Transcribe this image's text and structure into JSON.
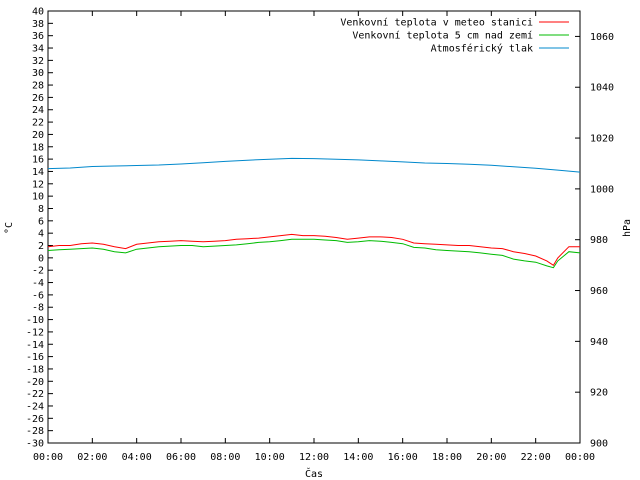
{
  "chart_data": {
    "type": "line",
    "title": "",
    "xlabel": "Čas",
    "ylabel_left": "°C",
    "ylabel_right": "hPa",
    "x_ticks": [
      "00:00",
      "02:00",
      "04:00",
      "06:00",
      "08:00",
      "10:00",
      "12:00",
      "14:00",
      "16:00",
      "18:00",
      "20:00",
      "22:00",
      "00:00"
    ],
    "x_range_hours": [
      0,
      24
    ],
    "y_left_range": [
      -30,
      40
    ],
    "y_left_step": 2,
    "y_right_range": [
      900,
      1070
    ],
    "y_right_ticks": [
      900,
      920,
      940,
      960,
      980,
      1000,
      1020,
      1040,
      1060
    ],
    "grid": false,
    "legend_position": "top-right",
    "series": [
      {
        "name": "Venkovní teplota v meteo stanici",
        "color": "#ff0000",
        "axis": "left",
        "x": [
          0,
          0.5,
          1,
          1.5,
          2,
          2.5,
          3,
          3.5,
          4,
          4.5,
          5,
          5.5,
          6,
          6.5,
          7,
          7.5,
          8,
          8.5,
          9,
          9.5,
          10,
          10.5,
          11,
          11.5,
          12,
          12.5,
          13,
          13.5,
          14,
          14.5,
          15,
          15.5,
          16,
          16.5,
          17,
          17.5,
          18,
          18.5,
          19,
          19.5,
          20,
          20.5,
          21,
          21.5,
          22,
          22.5,
          22.8,
          23,
          23.5,
          24
        ],
        "y": [
          1.8,
          2.0,
          2.0,
          2.3,
          2.4,
          2.2,
          1.8,
          1.5,
          2.2,
          2.4,
          2.6,
          2.7,
          2.8,
          2.7,
          2.6,
          2.7,
          2.8,
          3.0,
          3.1,
          3.2,
          3.4,
          3.6,
          3.8,
          3.6,
          3.6,
          3.5,
          3.3,
          3.0,
          3.2,
          3.4,
          3.4,
          3.3,
          3.0,
          2.4,
          2.3,
          2.2,
          2.1,
          2.0,
          2.0,
          1.8,
          1.6,
          1.5,
          1.0,
          0.7,
          0.3,
          -0.5,
          -1.2,
          0.0,
          1.8,
          1.8
        ]
      },
      {
        "name": "Venkovní teplota 5 cm nad zemí",
        "color": "#00bb00",
        "axis": "left",
        "x": [
          0,
          0.5,
          1,
          1.5,
          2,
          2.5,
          3,
          3.5,
          4,
          4.5,
          5,
          5.5,
          6,
          6.5,
          7,
          7.5,
          8,
          8.5,
          9,
          9.5,
          10,
          10.5,
          11,
          11.5,
          12,
          12.5,
          13,
          13.5,
          14,
          14.5,
          15,
          15.5,
          16,
          16.5,
          17,
          17.5,
          18,
          18.5,
          19,
          19.5,
          20,
          20.5,
          21,
          21.5,
          22,
          22.5,
          22.8,
          23,
          23.5,
          24
        ],
        "y": [
          1.2,
          1.3,
          1.4,
          1.5,
          1.6,
          1.4,
          1.0,
          0.8,
          1.4,
          1.6,
          1.8,
          1.9,
          2.0,
          2.0,
          1.8,
          1.9,
          2.0,
          2.1,
          2.3,
          2.5,
          2.6,
          2.8,
          3.0,
          3.0,
          3.0,
          2.9,
          2.8,
          2.5,
          2.6,
          2.8,
          2.7,
          2.5,
          2.3,
          1.7,
          1.6,
          1.3,
          1.2,
          1.1,
          1.0,
          0.8,
          0.6,
          0.4,
          -0.2,
          -0.5,
          -0.7,
          -1.3,
          -1.6,
          -0.5,
          1.0,
          0.8
        ]
      },
      {
        "name": "Atmosférický tlak",
        "color": "#0088cc",
        "axis": "right",
        "x": [
          0,
          1,
          2,
          3,
          4,
          5,
          6,
          7,
          8,
          9,
          10,
          11,
          12,
          13,
          14,
          15,
          16,
          17,
          18,
          19,
          20,
          21,
          22,
          23,
          24
        ],
        "y": [
          1008.0,
          1008.2,
          1008.8,
          1009.0,
          1009.2,
          1009.4,
          1009.8,
          1010.3,
          1010.8,
          1011.3,
          1011.7,
          1012.0,
          1011.9,
          1011.7,
          1011.4,
          1011.0,
          1010.6,
          1010.2,
          1010.0,
          1009.7,
          1009.3,
          1008.7,
          1008.1,
          1007.4,
          1006.6
        ]
      }
    ]
  }
}
